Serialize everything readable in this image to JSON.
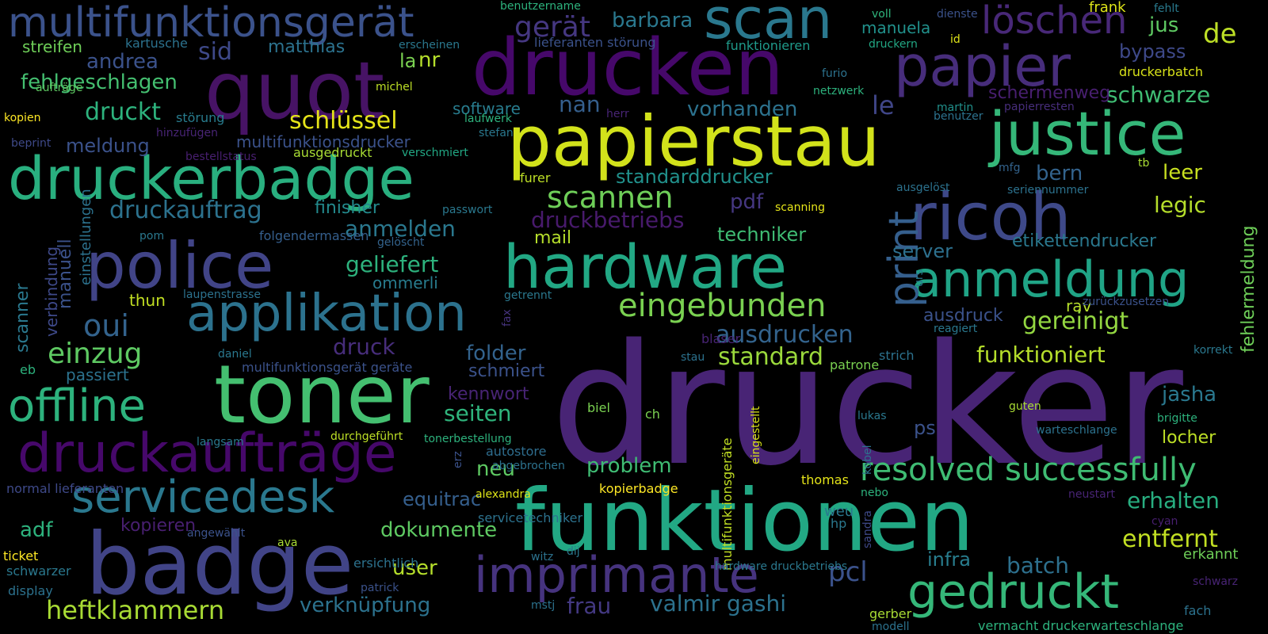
{
  "background": "#000000",
  "palette": {
    "p1": "#440154",
    "p2": "#482475",
    "p3": "#414487",
    "p4": "#355f8d",
    "p5": "#2a788e",
    "p6": "#21918c",
    "p7": "#22a884",
    "p8": "#44bf70",
    "p9": "#7ad151",
    "p10": "#bddf26",
    "p11": "#fde725"
  },
  "words": [
    {
      "text": "drucker",
      "color": "#482475"
    },
    {
      "text": "funktionen",
      "color": "#22a884"
    },
    {
      "text": "papierstau",
      "color": "#d2e21b"
    },
    {
      "text": "drucken",
      "color": "#46086a"
    },
    {
      "text": "quot",
      "color": "#471365"
    },
    {
      "text": "toner",
      "color": "#44bf70"
    },
    {
      "text": "badge",
      "color": "#414487"
    },
    {
      "text": "justice",
      "color": "#35b779"
    },
    {
      "text": "ricoh",
      "color": "#3e4989"
    },
    {
      "text": "police",
      "color": "#414487"
    },
    {
      "text": "hardware",
      "color": "#22a884"
    },
    {
      "text": "papier",
      "color": "#472d7b"
    },
    {
      "text": "druckerbadge",
      "color": "#29af7f"
    },
    {
      "text": "scan",
      "color": "#2a788e"
    },
    {
      "text": "druckaufträge",
      "color": "#46086a"
    },
    {
      "text": "multifunktionsgerät",
      "color": "#3b528b"
    },
    {
      "text": "applikation",
      "color": "#2c728e"
    },
    {
      "text": "anmeldung",
      "color": "#20a486"
    },
    {
      "text": "offline",
      "color": "#2db27d"
    },
    {
      "text": "servicedesk",
      "color": "#2a788e"
    },
    {
      "text": "imprimante",
      "color": "#46337e"
    },
    {
      "text": "gedruckt",
      "color": "#35b779"
    },
    {
      "text": "print",
      "color": "#355f8d"
    },
    {
      "text": "eingebunden",
      "color": "#7ad151"
    },
    {
      "text": "löschen",
      "color": "#482878"
    },
    {
      "text": "resolved successfully",
      "color": "#3fbc73"
    },
    {
      "text": "oui",
      "color": "#33638d"
    },
    {
      "text": "einzug",
      "color": "#5ec962"
    },
    {
      "text": "scannen",
      "color": "#6ece58"
    },
    {
      "text": "druckauftrag",
      "color": "#2c728e"
    },
    {
      "text": "heftklammern",
      "color": "#a8db34"
    },
    {
      "text": "schlüssel",
      "color": "#e5e419"
    },
    {
      "text": "ausdrucken",
      "color": "#33638d"
    },
    {
      "text": "standard",
      "color": "#9bd93c"
    },
    {
      "text": "gereinigt",
      "color": "#93d741"
    },
    {
      "text": "funktioniert",
      "color": "#b5de2b"
    },
    {
      "text": "entfernt",
      "color": "#c2df23"
    },
    {
      "text": "erhalten",
      "color": "#28ae80"
    },
    {
      "text": "valmir gashi",
      "color": "#2c728e"
    },
    {
      "text": "frau",
      "color": "#443983"
    },
    {
      "text": "pcl",
      "color": "#3b528b"
    },
    {
      "text": "batch",
      "color": "#2d708e"
    },
    {
      "text": "infra",
      "color": "#287d8e"
    },
    {
      "text": "verknüpfung",
      "color": "#2c728e"
    },
    {
      "text": "dokumente",
      "color": "#5ec962"
    },
    {
      "text": "user",
      "color": "#b5de2b"
    },
    {
      "text": "adf",
      "color": "#2db27d"
    },
    {
      "text": "kopieren",
      "color": "#481f70"
    },
    {
      "text": "equitrac",
      "color": "#355f8d"
    },
    {
      "text": "problem",
      "color": "#3fbc73"
    },
    {
      "text": "neu",
      "color": "#5ec962"
    },
    {
      "text": "autostore",
      "color": "#2e6d8e"
    },
    {
      "text": "seiten",
      "color": "#2fb47c"
    },
    {
      "text": "kennwort",
      "color": "#482475"
    },
    {
      "text": "schmiert",
      "color": "#3b528b"
    },
    {
      "text": "folder",
      "color": "#33638d"
    },
    {
      "text": "druck",
      "color": "#472d7b"
    },
    {
      "text": "geliefert",
      "color": "#2db27d"
    },
    {
      "text": "ommerli",
      "color": "#287c8e"
    },
    {
      "text": "anmelden",
      "color": "#2a788e"
    },
    {
      "text": "finisher",
      "color": "#238a8d"
    },
    {
      "text": "druckbetriebs",
      "color": "#481a6c"
    },
    {
      "text": "standarddrucker",
      "color": "#21918c"
    },
    {
      "text": "vorhanden",
      "color": "#2c728e"
    },
    {
      "text": "techniker",
      "color": "#3fbc73"
    },
    {
      "text": "mail",
      "color": "#b5de2b"
    },
    {
      "text": "pdf",
      "color": "#453781"
    },
    {
      "text": "server",
      "color": "#2d708e"
    },
    {
      "text": "etikettendrucker",
      "color": "#2a788e"
    },
    {
      "text": "legic",
      "color": "#b5de2b"
    },
    {
      "text": "leer",
      "color": "#c8e020"
    },
    {
      "text": "bern",
      "color": "#33638d"
    },
    {
      "text": "le",
      "color": "#404688"
    },
    {
      "text": "nan",
      "color": "#355f8d"
    },
    {
      "text": "druckt",
      "color": "#2db27d"
    },
    {
      "text": "meldung",
      "color": "#3b528b"
    },
    {
      "text": "fehlgeschlagen",
      "color": "#44bf70"
    },
    {
      "text": "andrea",
      "color": "#3b528b"
    },
    {
      "text": "streifen",
      "color": "#6ece58"
    },
    {
      "text": "sid",
      "color": "#3e4989"
    },
    {
      "text": "matthias",
      "color": "#2c728e"
    },
    {
      "text": "nr",
      "color": "#b5de2b"
    },
    {
      "text": "la",
      "color": "#7ad151"
    },
    {
      "text": "barbara",
      "color": "#2a788e"
    },
    {
      "text": "gerät",
      "color": "#453781"
    },
    {
      "text": "manuela",
      "color": "#21918c"
    },
    {
      "text": "jus",
      "color": "#5ec962"
    },
    {
      "text": "de",
      "color": "#bddf26"
    },
    {
      "text": "bypass",
      "color": "#3e4989"
    },
    {
      "text": "schwarze",
      "color": "#3fbc73"
    },
    {
      "text": "schermenweg",
      "color": "#481f70"
    },
    {
      "text": "druckerbatch",
      "color": "#d8e219"
    },
    {
      "text": "frank",
      "color": "#dde318"
    },
    {
      "text": "fehlt",
      "color": "#297a8e"
    },
    {
      "text": "dienste",
      "color": "#3b528b"
    },
    {
      "text": "voll",
      "color": "#2fb47c"
    },
    {
      "text": "id",
      "color": "#dde318"
    },
    {
      "text": "druckern",
      "color": "#22a884"
    },
    {
      "text": "furio",
      "color": "#2c728e"
    },
    {
      "text": "netzwerk",
      "color": "#2db27d"
    },
    {
      "text": "funktionieren",
      "color": "#1f9a8a"
    },
    {
      "text": "lieferanten störung",
      "color": "#3b528b"
    },
    {
      "text": "erscheinen",
      "color": "#2a788e"
    },
    {
      "text": "benutzername",
      "color": "#2db27d"
    },
    {
      "text": "michel",
      "color": "#bddf26"
    },
    {
      "text": "aufträge",
      "color": "#5ec962"
    },
    {
      "text": "kartusche",
      "color": "#2c728e"
    },
    {
      "text": "kopien",
      "color": "#fde725"
    },
    {
      "text": "störung",
      "color": "#287c8e"
    },
    {
      "text": "software",
      "color": "#287c8e"
    },
    {
      "text": "laufwerk",
      "color": "#2db27d"
    },
    {
      "text": "stefan",
      "color": "#2a788e"
    },
    {
      "text": "hinzufügen",
      "color": "#482475"
    },
    {
      "text": "multifunktionsdrucker",
      "color": "#3b528b"
    },
    {
      "text": "herr",
      "color": "#482475"
    },
    {
      "text": "martin",
      "color": "#21918c"
    },
    {
      "text": "papierresten",
      "color": "#472d7b"
    },
    {
      "text": "benutzer",
      "color": "#2c728e"
    },
    {
      "text": "beprint",
      "color": "#3e4989"
    },
    {
      "text": "bestellstatus",
      "color": "#481f70"
    },
    {
      "text": "ausgedruckt",
      "color": "#a8db34"
    },
    {
      "text": "verschmiert",
      "color": "#22a884"
    },
    {
      "text": "mfg",
      "color": "#33638d"
    },
    {
      "text": "tb",
      "color": "#a8db34"
    },
    {
      "text": "ausgelöst",
      "color": "#2c728e"
    },
    {
      "text": "seriennummer",
      "color": "#2c728e"
    },
    {
      "text": "furer",
      "color": "#bddf26"
    },
    {
      "text": "scanning",
      "color": "#e5e419"
    },
    {
      "text": "passwort",
      "color": "#2a788e"
    },
    {
      "text": "pom",
      "color": "#2a788e"
    },
    {
      "text": "folgendermassen",
      "color": "#355f8d"
    },
    {
      "text": "gelöscht",
      "color": "#33638d"
    },
    {
      "text": "verbindung",
      "color": "#3e4989"
    },
    {
      "text": "manuell",
      "color": "#3b528b"
    },
    {
      "text": "einstellungen",
      "color": "#2c728e"
    },
    {
      "text": "scanner",
      "color": "#2a788e"
    },
    {
      "text": "eb",
      "color": "#2db27d"
    },
    {
      "text": "thun",
      "color": "#c2df23"
    },
    {
      "text": "laupenstrasse",
      "color": "#2c728e"
    },
    {
      "text": "getrennt",
      "color": "#2a788e"
    },
    {
      "text": "fax",
      "color": "#46337e"
    },
    {
      "text": "urs",
      "color": "#2a788e"
    },
    {
      "text": "ausdruck",
      "color": "#3b528b"
    },
    {
      "text": "reagiert",
      "color": "#2a788e"
    },
    {
      "text": "rav",
      "color": "#b5de2b"
    },
    {
      "text": "zurückzusetzen",
      "color": "#3b528b"
    },
    {
      "text": "fehlermeldung",
      "color": "#6ece58"
    },
    {
      "text": "blaser",
      "color": "#482475"
    },
    {
      "text": "strich",
      "color": "#2c728e"
    },
    {
      "text": "stau",
      "color": "#2c728e"
    },
    {
      "text": "patrone",
      "color": "#7ad151"
    },
    {
      "text": "korrekt",
      "color": "#2a788e"
    },
    {
      "text": "jasha",
      "color": "#2a788e"
    },
    {
      "text": "locher",
      "color": "#bddf26"
    },
    {
      "text": "brigitte",
      "color": "#2db27d"
    },
    {
      "text": "guten",
      "color": "#a8db34"
    },
    {
      "text": "warteschlange",
      "color": "#2c728e"
    },
    {
      "text": "ps",
      "color": "#3b528b"
    },
    {
      "text": "lukas",
      "color": "#2a788e"
    },
    {
      "text": "eingestellt",
      "color": "#d8e219"
    },
    {
      "text": "ch",
      "color": "#7ad151"
    },
    {
      "text": "biel",
      "color": "#7ad151"
    },
    {
      "text": "daniel",
      "color": "#2a788e"
    },
    {
      "text": "multifunktionsgerät geräte",
      "color": "#3b528b"
    },
    {
      "text": "passiert",
      "color": "#2c728e"
    },
    {
      "text": "langsam",
      "color": "#2a788e"
    },
    {
      "text": "durchgeführt",
      "color": "#bddf26"
    },
    {
      "text": "tonerbestellung",
      "color": "#2db27d"
    },
    {
      "text": "abgebrochen",
      "color": "#2c728e"
    },
    {
      "text": "erz",
      "color": "#3b528b"
    },
    {
      "text": "alexandra",
      "color": "#dde318"
    },
    {
      "text": "kopierbadge",
      "color": "#fde725"
    },
    {
      "text": "thomas",
      "color": "#e5e419"
    },
    {
      "text": "kobel",
      "color": "#2c728e"
    },
    {
      "text": "nebo",
      "color": "#2db27d"
    },
    {
      "text": "neustart",
      "color": "#482475"
    },
    {
      "text": "cyan",
      "color": "#481f70"
    },
    {
      "text": "erkannt",
      "color": "#6ece58"
    },
    {
      "text": "hp",
      "color": "#2a788e"
    },
    {
      "text": "weu",
      "color": "#2a788e"
    },
    {
      "text": "sandra",
      "color": "#3e4989"
    },
    {
      "text": "multifunktionsgeräte",
      "color": "#c2df23"
    },
    {
      "text": "normal lieferanten",
      "color": "#3e4989"
    },
    {
      "text": "servicetechniker",
      "color": "#2c728e"
    },
    {
      "text": "angewählt",
      "color": "#3b528b"
    },
    {
      "text": "ava",
      "color": "#a8db34"
    },
    {
      "text": "ticket",
      "color": "#fde725"
    },
    {
      "text": "ersichtlich",
      "color": "#2c728e"
    },
    {
      "text": "schwarzer",
      "color": "#2a788e"
    },
    {
      "text": "display",
      "color": "#2c728e"
    },
    {
      "text": "patrick",
      "color": "#3b528b"
    },
    {
      "text": "witz",
      "color": "#2c728e"
    },
    {
      "text": "dij",
      "color": "#2a788e"
    },
    {
      "text": "mstj",
      "color": "#2c728e"
    },
    {
      "text": "hardware druckbetriebs",
      "color": "#2a788e"
    },
    {
      "text": "gerber",
      "color": "#a8db34"
    },
    {
      "text": "modell",
      "color": "#2c728e"
    },
    {
      "text": "vermacht druckerwarteschlange",
      "color": "#2db27d"
    },
    {
      "text": "fach",
      "color": "#2c728e"
    },
    {
      "text": "schwarz",
      "color": "#482475"
    }
  ]
}
